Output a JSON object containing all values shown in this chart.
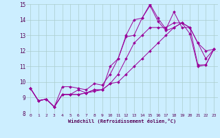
{
  "xlabel": "Windchill (Refroidissement éolien,°C)",
  "background_color": "#cceeff",
  "grid_color": "#aacccc",
  "line_color": "#990099",
  "xlim": [
    -0.5,
    23.5
  ],
  "ylim": [
    8,
    15
  ],
  "yticks": [
    8,
    9,
    10,
    11,
    12,
    13,
    14,
    15
  ],
  "xticks": [
    0,
    1,
    2,
    3,
    4,
    5,
    6,
    7,
    8,
    9,
    10,
    11,
    12,
    13,
    14,
    15,
    16,
    17,
    18,
    19,
    20,
    21,
    22,
    23
  ],
  "series": [
    [
      9.6,
      8.8,
      8.9,
      8.4,
      9.2,
      9.2,
      9.5,
      9.3,
      9.4,
      9.5,
      11.0,
      11.5,
      13.0,
      14.0,
      14.1,
      14.9,
      13.9,
      13.3,
      13.5,
      13.8,
      13.1,
      11.0,
      11.1,
      12.1
    ],
    [
      9.6,
      8.8,
      8.9,
      8.4,
      9.7,
      9.7,
      9.6,
      9.5,
      9.9,
      9.8,
      10.5,
      11.5,
      12.9,
      13.0,
      14.1,
      15.0,
      14.1,
      13.4,
      14.5,
      13.5,
      13.5,
      11.1,
      11.1,
      12.1
    ],
    [
      9.6,
      8.8,
      8.9,
      8.4,
      9.2,
      9.2,
      9.2,
      9.3,
      9.5,
      9.5,
      9.9,
      10.5,
      11.5,
      12.5,
      13.0,
      13.5,
      13.5,
      13.5,
      13.8,
      13.8,
      13.5,
      12.5,
      12.0,
      12.1
    ],
    [
      9.6,
      8.8,
      8.9,
      8.4,
      9.2,
      9.2,
      9.2,
      9.3,
      9.5,
      9.5,
      9.9,
      10.0,
      10.5,
      11.0,
      11.5,
      12.0,
      12.5,
      13.0,
      13.5,
      13.8,
      13.5,
      12.5,
      11.5,
      12.1
    ]
  ]
}
